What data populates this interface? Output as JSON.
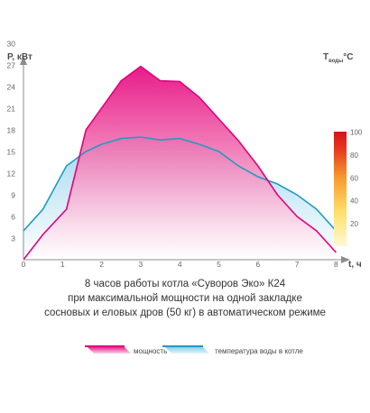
{
  "chart_data": {
    "type": "area",
    "title_lines": [
      "8 часов работы котла «Суворов Эко» К24",
      "при максимальной мощности на одной закладке",
      "сосновых и еловых дров (50 кг) в автоматическом режиме"
    ],
    "xlabel": "t, ч",
    "ylabel": "Р, кВт",
    "ylabel2_main": "T",
    "ylabel2_sub": "воды",
    "ylabel2_unit": "°C",
    "xlim": [
      0,
      8.3
    ],
    "ylim": [
      0,
      31
    ],
    "x_ticks": [
      "0",
      "1",
      "2",
      "3",
      "4",
      "5",
      "6",
      "7",
      "8"
    ],
    "y_ticks": [
      "3",
      "6",
      "9",
      "12",
      "15",
      "18",
      "21",
      "24",
      "27",
      "30"
    ],
    "colorbar_ticks": [
      "20",
      "40",
      "60",
      "80",
      "100"
    ],
    "colorbar_range": [
      0,
      100
    ],
    "series": [
      {
        "name": "мощность",
        "color": "#e4007e",
        "x": [
          0,
          0.5,
          1.1,
          1.6,
          2.5,
          3.0,
          3.5,
          4.0,
          4.5,
          5.0,
          5.5,
          6.0,
          6.5,
          7.0,
          7.5,
          8.0
        ],
        "y": [
          0,
          3.5,
          7,
          18,
          24.8,
          26.8,
          24.8,
          24.7,
          22.5,
          19.5,
          16.5,
          13,
          9,
          6,
          4,
          1
        ]
      },
      {
        "name": "температура воды в котле",
        "color": "#1f9cc4",
        "x": [
          0,
          0.5,
          1.1,
          1.6,
          2.0,
          2.5,
          3.0,
          3.5,
          4.0,
          4.5,
          5.0,
          5.5,
          6.0,
          6.5,
          7.0,
          7.5,
          8.0
        ],
        "y": [
          4,
          7,
          13,
          15,
          16,
          16.8,
          17,
          16.6,
          16.8,
          16,
          15,
          13,
          11.5,
          10.5,
          9,
          7,
          4
        ]
      }
    ],
    "legend": [
      {
        "label": "мощность"
      },
      {
        "label": "температура воды в котле"
      }
    ]
  }
}
